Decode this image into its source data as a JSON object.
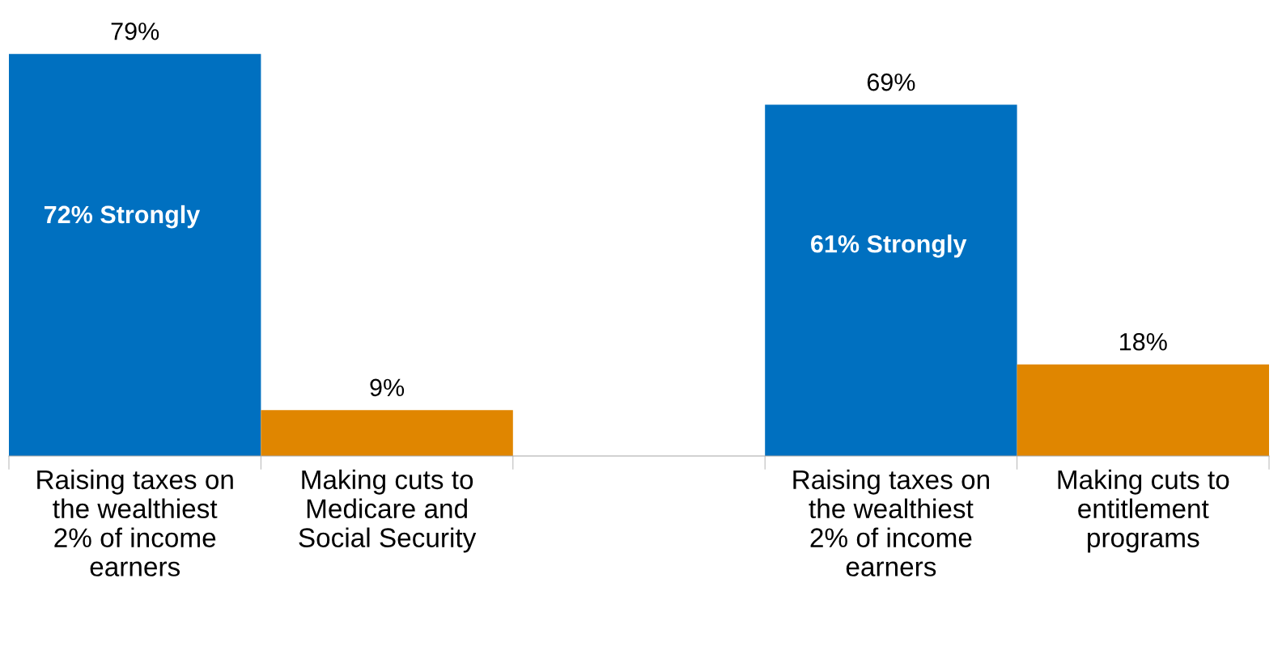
{
  "chart_data": {
    "type": "bar",
    "categories": [
      "Raising taxes on the wealthiest 2% of income earners",
      "Making cuts to Medicare and Social Security",
      null,
      "Raising taxes on the wealthiest 2% of income earners",
      "Making cuts to entitlement programs"
    ],
    "values": [
      79,
      9,
      null,
      69,
      18
    ],
    "colors": [
      "#0070c0",
      "#e08600",
      "#0070c0",
      "#0070c0",
      "#e08600"
    ],
    "value_labels": [
      "79%",
      "9%",
      null,
      "69%",
      "18%"
    ],
    "annotations": [
      "72% Strongly",
      "61% Strongly"
    ],
    "grid": false,
    "legend": false
  }
}
